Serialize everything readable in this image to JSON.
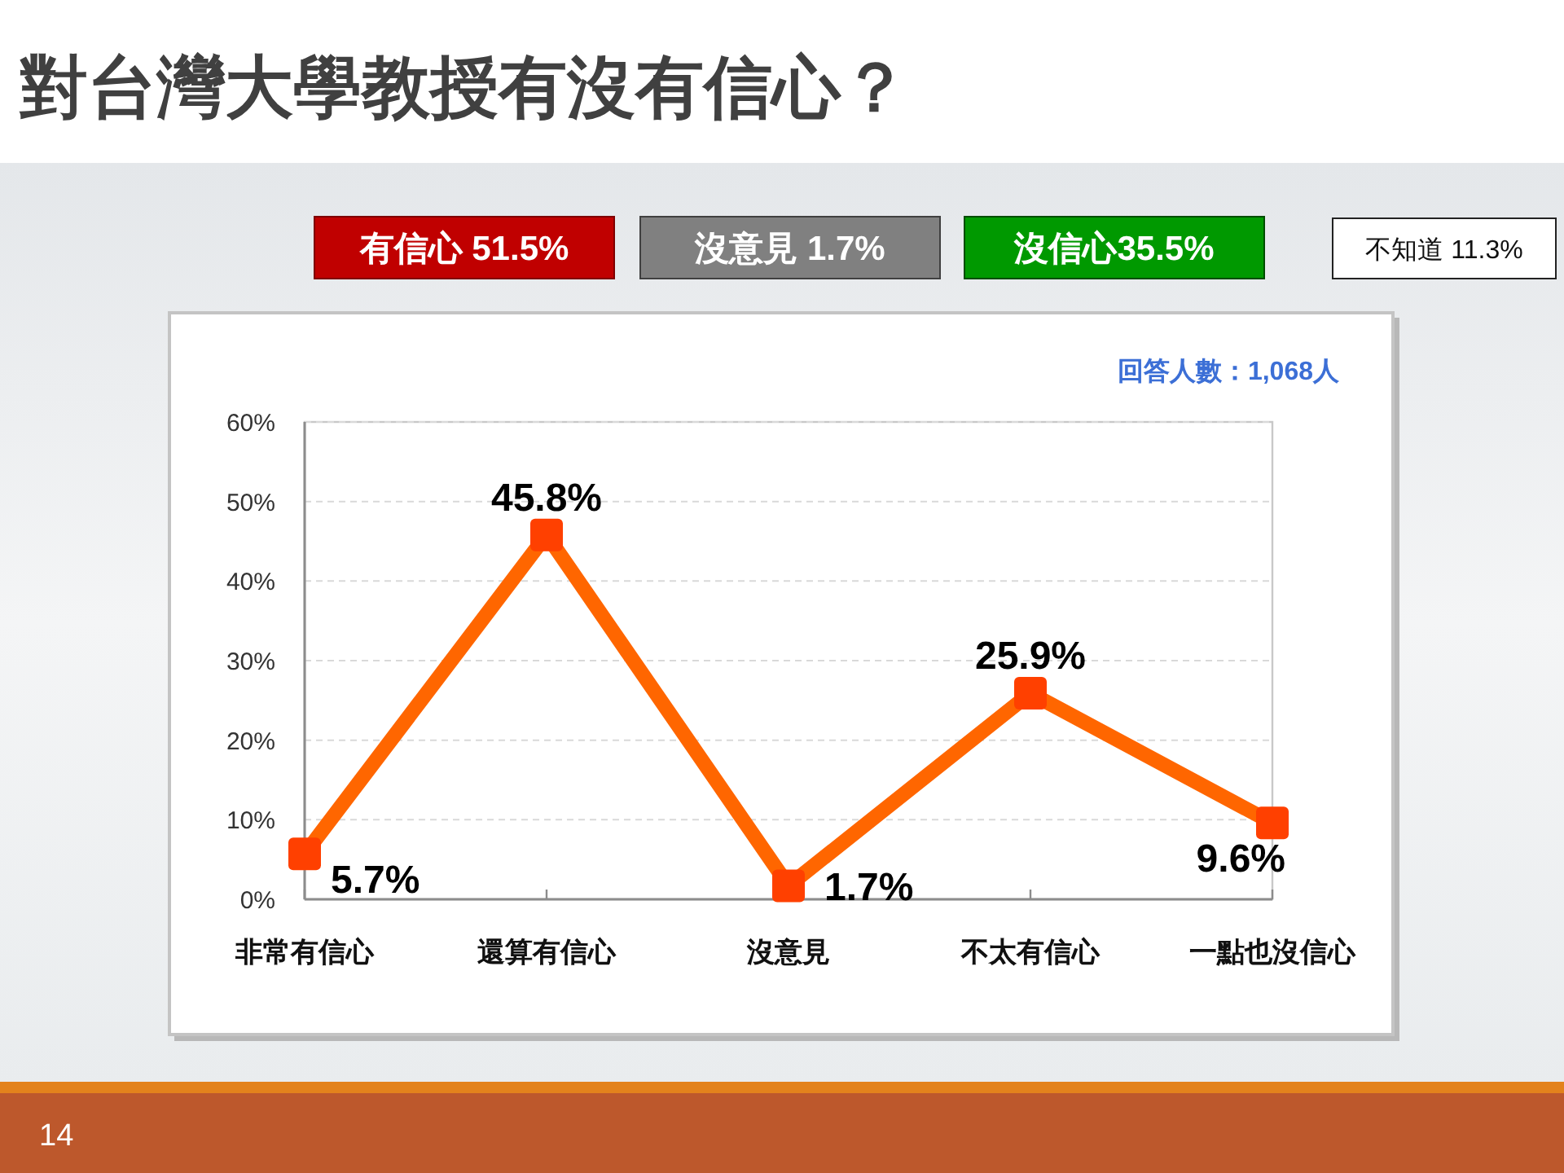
{
  "chart_data": {
    "type": "line",
    "title": "對台灣大學教授有沒有信心？",
    "categories": [
      "非常有信心",
      "還算有信心",
      "沒意見",
      "不太有信心",
      "一點也沒信心"
    ],
    "values": [
      5.7,
      45.8,
      1.7,
      25.9,
      9.6
    ],
    "color": "#ff6600",
    "colors": [
      "#ff4000",
      "#ff4000",
      "#ff4000",
      "#ff4000",
      "#ff4000"
    ],
    "value_labels": [
      "5.7%",
      "45.8%",
      "1.7%",
      "25.9%",
      "9.6%"
    ],
    "ylim": [
      0,
      60
    ],
    "yticks": [
      {
        "value": 0,
        "label": "0%"
      },
      {
        "value": 10,
        "label": "10%"
      },
      {
        "value": 20,
        "label": "20%"
      },
      {
        "value": 30,
        "label": "30%"
      },
      {
        "value": 40,
        "label": "40%"
      },
      {
        "value": 50,
        "label": "50%"
      },
      {
        "value": 60,
        "label": "60%"
      }
    ],
    "grid": "y",
    "marker": "square",
    "line_style": "solid",
    "annotations": [
      "有信心 51.5%",
      "沒意見 1.7%",
      "沒信心35.5%",
      "不知道 11.3%",
      "回答人數：1,068人",
      "14"
    ]
  }
}
